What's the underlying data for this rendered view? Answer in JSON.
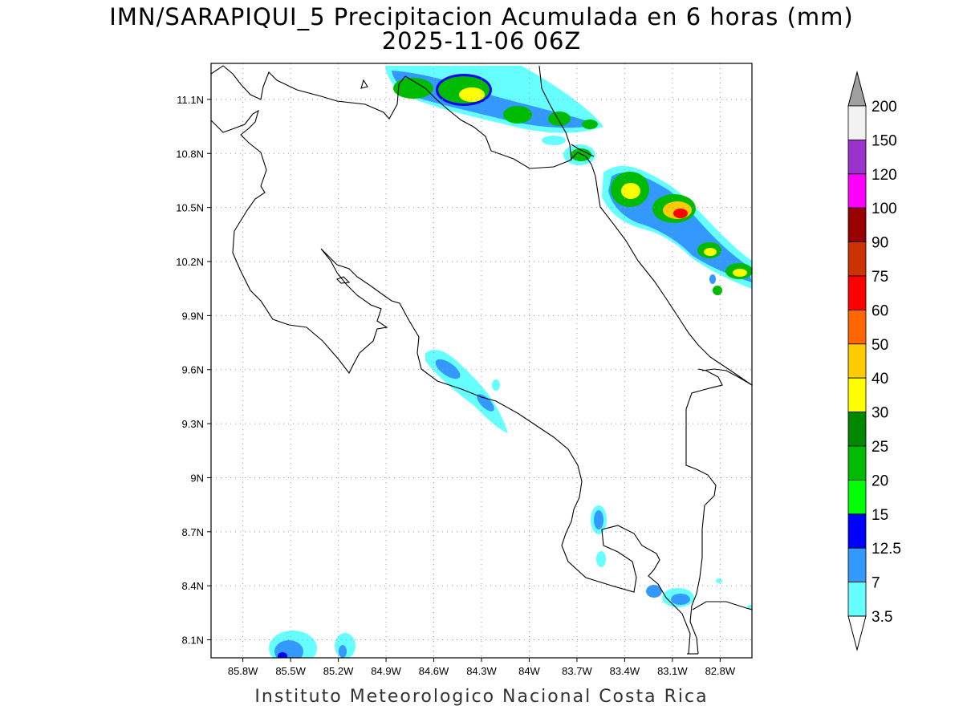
{
  "title": "IMN/SARAPIQUI_5 Precipitacion Acumulada en 6 horas (mm)",
  "subtitle": "2025-11-06 06Z",
  "footer": "Instituto Meteorologico Nacional Costa Rica",
  "map": {
    "lon_range": [
      -86.0,
      -82.6
    ],
    "lat_range": [
      8.0,
      11.3
    ],
    "lat_ticks": [
      "11.1N",
      "10.8N",
      "10.5N",
      "10.2N",
      "9.9N",
      "9.6N",
      "9.3N",
      "9N",
      "8.7N",
      "8.4N",
      "8.1N"
    ],
    "lon_ticks": [
      "85.8W",
      "85.5W",
      "85.2W",
      "84.9W",
      "84.6W",
      "84.3W",
      "84W",
      "83.7W",
      "83.4W",
      "83.1W",
      "82.8W"
    ],
    "grid": "dotted"
  },
  "colorbar": {
    "labels": [
      "200",
      "150",
      "120",
      "100",
      "90",
      "75",
      "60",
      "50",
      "40",
      "30",
      "25",
      "20",
      "15",
      "12.5",
      "7",
      "3.5"
    ],
    "colors": [
      "#f2f2f2",
      "#9933cc",
      "#ff00ff",
      "#990000",
      "#cc3300",
      "#ff0000",
      "#ff6600",
      "#ffcc00",
      "#ffff00",
      "#008800",
      "#00bb00",
      "#00ff00",
      "#0000ff",
      "#3399ff",
      "#66ffff"
    ],
    "top_arrow_color": "#a0a0a0",
    "bottom_arrow_color": "#ffffff"
  }
}
